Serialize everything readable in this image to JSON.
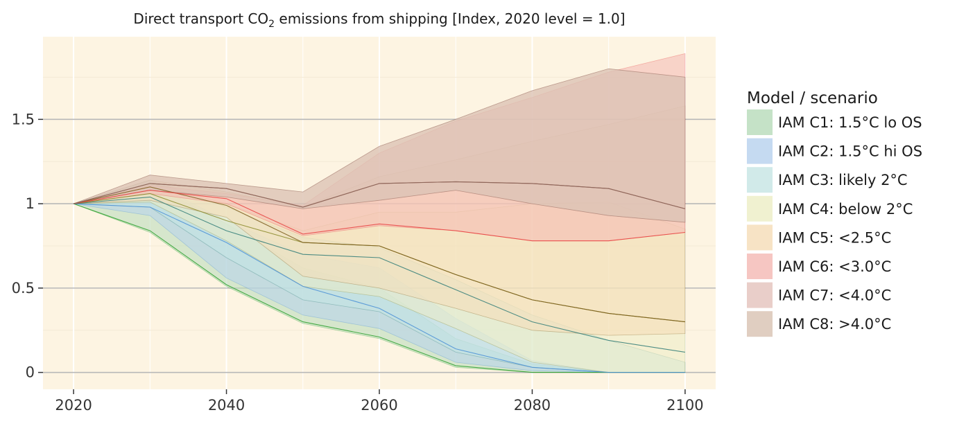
{
  "chart_data": {
    "type": "area",
    "title_main": "Direct transport CO",
    "title_sub": "2",
    "title_rest": " emissions from shipping [Index, 2020 level = 1.0]",
    "xlabel": "",
    "ylabel": "",
    "x_ticks": [
      "2020",
      "2040",
      "2060",
      "2080",
      "2100"
    ],
    "y_ticks": [
      "0",
      "0.5",
      "1",
      "1.5"
    ],
    "xlim": [
      2016,
      2104
    ],
    "ylim": [
      -0.1,
      1.99
    ],
    "legend_title": "Model / scenario",
    "legend_position": "right",
    "grid": true,
    "background": "#fdf4e2",
    "series": [
      {
        "name": "IAM C1: 1.5°C lo OS",
        "fill": "#b7dbb9",
        "line": "#2ca02c",
        "x": [
          2020,
          2030,
          2040,
          2050,
          2060,
          2070,
          2080,
          2090,
          2100
        ],
        "lower": [
          1.0,
          0.83,
          0.51,
          0.29,
          0.2,
          0.03,
          0.0,
          0.0,
          0.0
        ],
        "upper": [
          1.0,
          1.12,
          0.88,
          0.62,
          0.5,
          0.2,
          0.05,
          0.0,
          0.0
        ],
        "median": [
          1.0,
          0.84,
          0.52,
          0.3,
          0.21,
          0.04,
          0.0,
          0.0,
          0.0
        ]
      },
      {
        "name": "IAM C2: 1.5°C hi OS",
        "fill": "#b6d1ee",
        "line": "#4a8fd6",
        "x": [
          2020,
          2030,
          2040,
          2050,
          2060,
          2070,
          2080,
          2090,
          2100
        ],
        "lower": [
          1.0,
          0.93,
          0.56,
          0.34,
          0.26,
          0.06,
          0.01,
          0.0,
          0.0
        ],
        "upper": [
          1.0,
          1.13,
          0.9,
          0.7,
          0.62,
          0.32,
          0.07,
          0.0,
          0.0
        ],
        "median": [
          1.0,
          0.98,
          0.77,
          0.51,
          0.38,
          0.14,
          0.03,
          0.0,
          0.0
        ]
      },
      {
        "name": "IAM C3: likely 2°C",
        "fill": "#c5e5e3",
        "line": "#2f7b77",
        "x": [
          2020,
          2030,
          2040,
          2050,
          2060,
          2070,
          2080,
          2090,
          2100
        ],
        "lower": [
          1.0,
          0.98,
          0.68,
          0.43,
          0.36,
          0.12,
          0.03,
          0.0,
          0.0
        ],
        "upper": [
          1.0,
          1.14,
          0.98,
          0.8,
          0.74,
          0.55,
          0.34,
          0.19,
          0.06
        ],
        "median": [
          1.0,
          1.04,
          0.84,
          0.7,
          0.68,
          0.49,
          0.3,
          0.19,
          0.12
        ]
      },
      {
        "name": "IAM C4: below 2°C",
        "fill": "#ecedc4",
        "line": "#8a8a2a",
        "x": [
          2020,
          2030,
          2040,
          2050,
          2060,
          2070,
          2080,
          2090,
          2100
        ],
        "lower": [
          1.0,
          1.01,
          0.78,
          0.51,
          0.45,
          0.26,
          0.06,
          0.0,
          0.0
        ],
        "upper": [
          1.0,
          1.12,
          1.0,
          0.84,
          0.95,
          0.95,
          1.0,
          1.01,
          0.85
        ],
        "median": [
          1.0,
          1.06,
          0.9,
          0.77,
          0.75,
          0.58,
          0.43,
          0.35,
          0.3
        ]
      },
      {
        "name": "IAM C5: <2.5°C",
        "fill": "#f5dcb6",
        "line": "#7a5a1a",
        "x": [
          2020,
          2030,
          2040,
          2050,
          2060,
          2070,
          2080,
          2090,
          2100
        ],
        "lower": [
          1.0,
          1.02,
          0.92,
          0.57,
          0.5,
          0.38,
          0.25,
          0.22,
          0.23
        ],
        "upper": [
          1.0,
          1.14,
          1.07,
          0.98,
          1.16,
          1.26,
          1.37,
          1.47,
          1.58
        ],
        "median": [
          1.0,
          1.1,
          0.99,
          0.77,
          0.75,
          0.58,
          0.43,
          0.35,
          0.3
        ]
      },
      {
        "name": "IAM C6: <3.0°C",
        "fill": "#f4b8b3",
        "line": "#e83f3f",
        "x": [
          2020,
          2030,
          2040,
          2050,
          2060,
          2070,
          2080,
          2090,
          2100
        ],
        "lower": [
          1.0,
          1.06,
          1.0,
          0.81,
          0.87,
          0.84,
          0.78,
          0.78,
          0.83
        ],
        "upper": [
          1.0,
          1.11,
          1.06,
          0.99,
          1.3,
          1.49,
          1.63,
          1.78,
          1.89
        ],
        "median": [
          1.0,
          1.08,
          1.03,
          0.82,
          0.88,
          0.84,
          0.78,
          0.78,
          0.83
        ]
      },
      {
        "name": "IAM C7: <4.0°C",
        "fill": "#e3c2bc",
        "line": "#9a4a4a",
        "x": [
          2020,
          2030,
          2040,
          2050,
          2060,
          2070,
          2080,
          2090,
          2100
        ],
        "lower": [
          1.0,
          1.08,
          1.04,
          0.97,
          1.02,
          1.08,
          1.0,
          0.93,
          0.89
        ],
        "upper": [
          1.0,
          1.17,
          1.12,
          1.07,
          1.34,
          1.5,
          1.67,
          1.8,
          1.75
        ],
        "median": [
          1.0,
          1.12,
          1.09,
          0.98,
          1.12,
          1.13,
          1.12,
          1.09,
          0.97
        ]
      },
      {
        "name": "IAM C8: >4.0°C",
        "fill": "#d8c2b2",
        "line": "#8a6a5a",
        "x": [
          2020,
          2030,
          2040,
          2050,
          2060,
          2070,
          2080,
          2090,
          2100
        ],
        "lower": [
          1.0,
          1.08,
          1.04,
          0.97,
          1.02,
          1.08,
          1.0,
          0.93,
          0.89
        ],
        "upper": [
          1.0,
          1.17,
          1.12,
          1.07,
          1.34,
          1.5,
          1.67,
          1.8,
          1.75
        ],
        "median": [
          1.0,
          1.12,
          1.09,
          0.98,
          1.12,
          1.13,
          1.12,
          1.09,
          0.97
        ]
      }
    ]
  }
}
